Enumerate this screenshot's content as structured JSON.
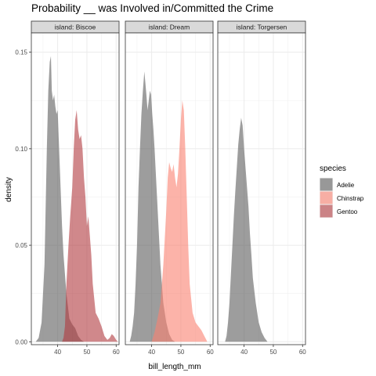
{
  "chart_data": {
    "type": "area",
    "title": "Probability __ was Involved in/Committed the Crime",
    "xlabel": "bill_length_mm",
    "ylabel": "density",
    "xlim": [
      31,
      61
    ],
    "ylim": [
      -0.0015,
      0.16
    ],
    "x_ticks": [
      40,
      50,
      60
    ],
    "y_ticks": [
      0.0,
      0.05,
      0.1,
      0.15
    ],
    "y_tick_labels": [
      "0.00",
      "0.05",
      "0.10",
      "0.15"
    ],
    "grid": true,
    "legend": {
      "title": "species",
      "position": "right",
      "entries": [
        {
          "name": "Adelie",
          "color": "#5b5b5b"
        },
        {
          "name": "Chinstrap",
          "color": "#fa8070"
        },
        {
          "name": "Gentoo",
          "color": "#b0383e"
        }
      ]
    },
    "facets": [
      {
        "label": "island: Biscoe",
        "series": [
          {
            "name": "Adelie",
            "points": [
              [
                32.5,
                0.0
              ],
              [
                33.5,
                0.002
              ],
              [
                34.5,
                0.01
              ],
              [
                35.5,
                0.04
              ],
              [
                36.3,
                0.1
              ],
              [
                36.8,
                0.13
              ],
              [
                37.3,
                0.145
              ],
              [
                37.7,
                0.148
              ],
              [
                38.0,
                0.13
              ],
              [
                38.4,
                0.125
              ],
              [
                38.8,
                0.128
              ],
              [
                39.2,
                0.122
              ],
              [
                39.6,
                0.118
              ],
              [
                40.0,
                0.12
              ],
              [
                40.5,
                0.1
              ],
              [
                41.0,
                0.08
              ],
              [
                41.5,
                0.06
              ],
              [
                42.0,
                0.045
              ],
              [
                43.0,
                0.025
              ],
              [
                44.0,
                0.012
              ],
              [
                45.0,
                0.009
              ],
              [
                46.0,
                0.007
              ],
              [
                47.0,
                0.003
              ],
              [
                48.0,
                0.001
              ],
              [
                49.0,
                0.0
              ]
            ]
          },
          {
            "name": "Gentoo",
            "points": [
              [
                41.5,
                0.0
              ],
              [
                42.0,
                0.002
              ],
              [
                42.5,
                0.008
              ],
              [
                43.0,
                0.03
              ],
              [
                43.7,
                0.05
              ],
              [
                44.3,
                0.065
              ],
              [
                45.0,
                0.08
              ],
              [
                45.5,
                0.1
              ],
              [
                46.0,
                0.115
              ],
              [
                46.5,
                0.12
              ],
              [
                47.0,
                0.11
              ],
              [
                47.5,
                0.105
              ],
              [
                48.0,
                0.107
              ],
              [
                48.5,
                0.1
              ],
              [
                49.0,
                0.085
              ],
              [
                49.5,
                0.075
              ],
              [
                50.0,
                0.06
              ],
              [
                50.5,
                0.065
              ],
              [
                51.0,
                0.055
              ],
              [
                51.5,
                0.045
              ],
              [
                52.0,
                0.03
              ],
              [
                53.0,
                0.015
              ],
              [
                54.0,
                0.012
              ],
              [
                55.0,
                0.008
              ],
              [
                56.0,
                0.003
              ],
              [
                57.0,
                0.001
              ],
              [
                57.8,
                0.002
              ],
              [
                58.5,
                0.004
              ],
              [
                59.2,
                0.003
              ],
              [
                60.0,
                0.001
              ],
              [
                60.6,
                0.0
              ]
            ]
          }
        ]
      },
      {
        "label": "island: Dream",
        "series": [
          {
            "name": "Adelie",
            "points": [
              [
                32.5,
                0.0
              ],
              [
                33.0,
                0.003
              ],
              [
                33.5,
                0.008
              ],
              [
                34.0,
                0.015
              ],
              [
                34.5,
                0.03
              ],
              [
                35.0,
                0.05
              ],
              [
                35.5,
                0.08
              ],
              [
                36.0,
                0.1
              ],
              [
                36.5,
                0.118
              ],
              [
                37.0,
                0.13
              ],
              [
                37.5,
                0.14
              ],
              [
                37.8,
                0.135
              ],
              [
                38.2,
                0.128
              ],
              [
                38.6,
                0.12
              ],
              [
                39.0,
                0.125
              ],
              [
                39.4,
                0.13
              ],
              [
                39.8,
                0.128
              ],
              [
                40.2,
                0.118
              ],
              [
                40.6,
                0.11
              ],
              [
                41.0,
                0.1
              ],
              [
                41.5,
                0.085
              ],
              [
                42.0,
                0.07
              ],
              [
                42.5,
                0.055
              ],
              [
                43.0,
                0.04
              ],
              [
                43.5,
                0.03
              ],
              [
                44.0,
                0.02
              ],
              [
                45.0,
                0.01
              ],
              [
                46.0,
                0.004
              ],
              [
                47.0,
                0.001
              ],
              [
                48.0,
                0.0
              ]
            ]
          },
          {
            "name": "Chinstrap",
            "points": [
              [
                40.0,
                0.0
              ],
              [
                41.0,
                0.005
              ],
              [
                42.0,
                0.012
              ],
              [
                43.0,
                0.02
              ],
              [
                44.0,
                0.04
              ],
              [
                45.0,
                0.068
              ],
              [
                45.5,
                0.085
              ],
              [
                46.0,
                0.093
              ],
              [
                46.5,
                0.09
              ],
              [
                47.0,
                0.088
              ],
              [
                47.5,
                0.092
              ],
              [
                48.0,
                0.085
              ],
              [
                48.5,
                0.08
              ],
              [
                49.0,
                0.087
              ],
              [
                49.5,
                0.1
              ],
              [
                50.0,
                0.115
              ],
              [
                50.5,
                0.125
              ],
              [
                51.0,
                0.12
              ],
              [
                51.5,
                0.1
              ],
              [
                52.0,
                0.075
              ],
              [
                52.5,
                0.05
              ],
              [
                53.0,
                0.03
              ],
              [
                54.0,
                0.015
              ],
              [
                55.0,
                0.01
              ],
              [
                56.0,
                0.008
              ],
              [
                57.0,
                0.006
              ],
              [
                58.0,
                0.003
              ],
              [
                58.7,
                0.001
              ],
              [
                59.0,
                0.0
              ]
            ]
          }
        ]
      },
      {
        "label": "island: Torgersen",
        "series": [
          {
            "name": "Adelie",
            "points": [
              [
                33.5,
                0.0
              ],
              [
                34.0,
                0.003
              ],
              [
                34.5,
                0.01
              ],
              [
                35.0,
                0.02
              ],
              [
                35.5,
                0.035
              ],
              [
                36.0,
                0.05
              ],
              [
                36.5,
                0.065
              ],
              [
                37.0,
                0.078
              ],
              [
                37.5,
                0.09
              ],
              [
                38.0,
                0.102
              ],
              [
                38.5,
                0.11
              ],
              [
                39.0,
                0.116
              ],
              [
                39.5,
                0.112
              ],
              [
                40.0,
                0.1
              ],
              [
                40.5,
                0.09
              ],
              [
                41.0,
                0.08
              ],
              [
                41.5,
                0.07
              ],
              [
                42.0,
                0.056
              ],
              [
                42.5,
                0.045
              ],
              [
                43.0,
                0.033
              ],
              [
                44.0,
                0.02
              ],
              [
                45.0,
                0.01
              ],
              [
                46.0,
                0.005
              ],
              [
                47.0,
                0.002
              ],
              [
                48.0,
                0.0
              ]
            ]
          }
        ]
      }
    ]
  }
}
